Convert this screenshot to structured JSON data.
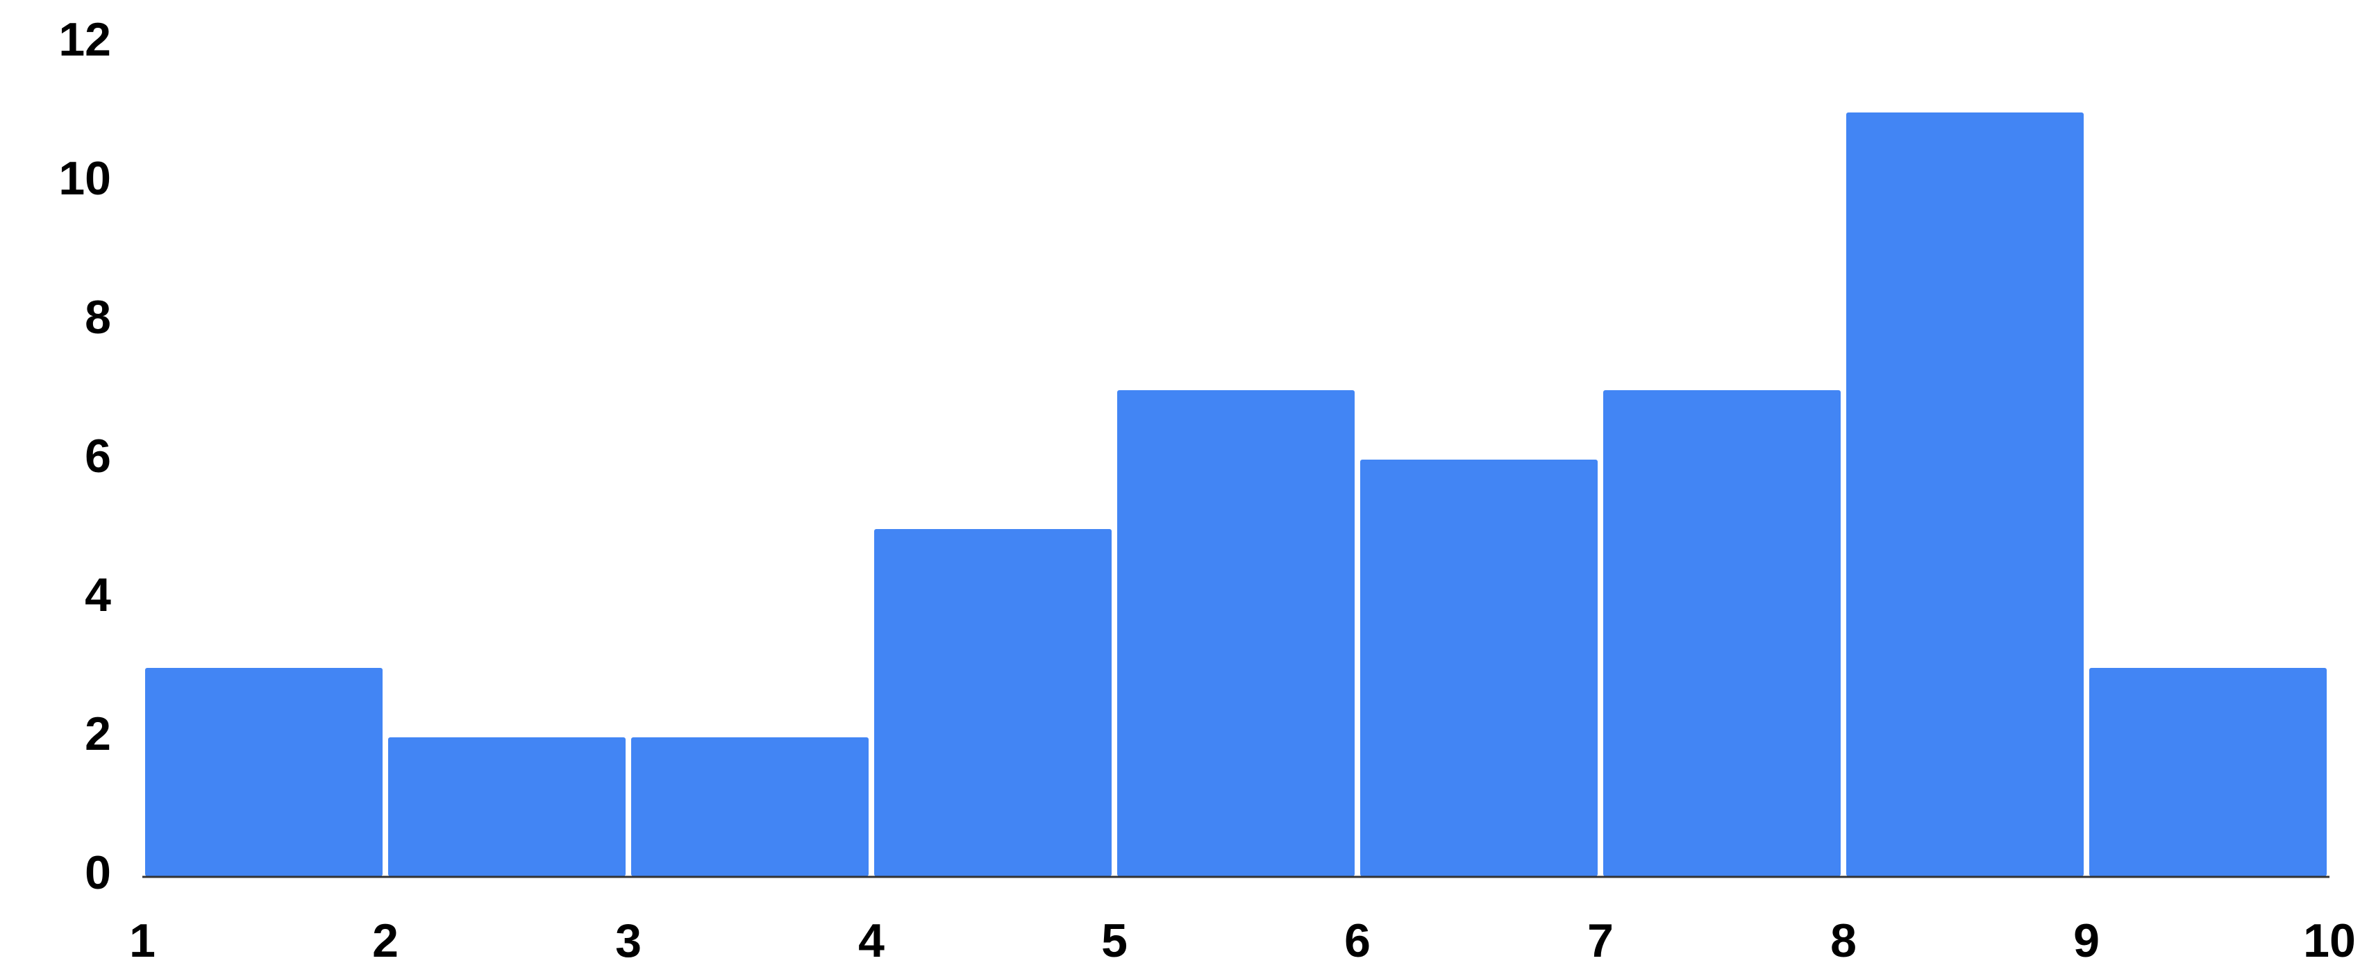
{
  "chart_data": {
    "type": "bar",
    "subtype": "histogram",
    "title": "",
    "xlabel": "",
    "ylabel": "",
    "bin_edges": [
      1,
      2,
      3,
      4,
      5,
      6,
      7,
      8,
      9,
      10
    ],
    "values": [
      3,
      2,
      2,
      5,
      7,
      6,
      7,
      11,
      3
    ],
    "xlim": [
      1,
      10
    ],
    "ylim": [
      0,
      12
    ],
    "y_ticks": [
      0,
      2,
      4,
      6,
      8,
      10,
      12
    ],
    "x_ticks": [
      1,
      2,
      3,
      4,
      5,
      6,
      7,
      8,
      9,
      10
    ],
    "grid": false,
    "legend": "none",
    "bar_color": "#4285F4",
    "axis_color": "#333333"
  }
}
